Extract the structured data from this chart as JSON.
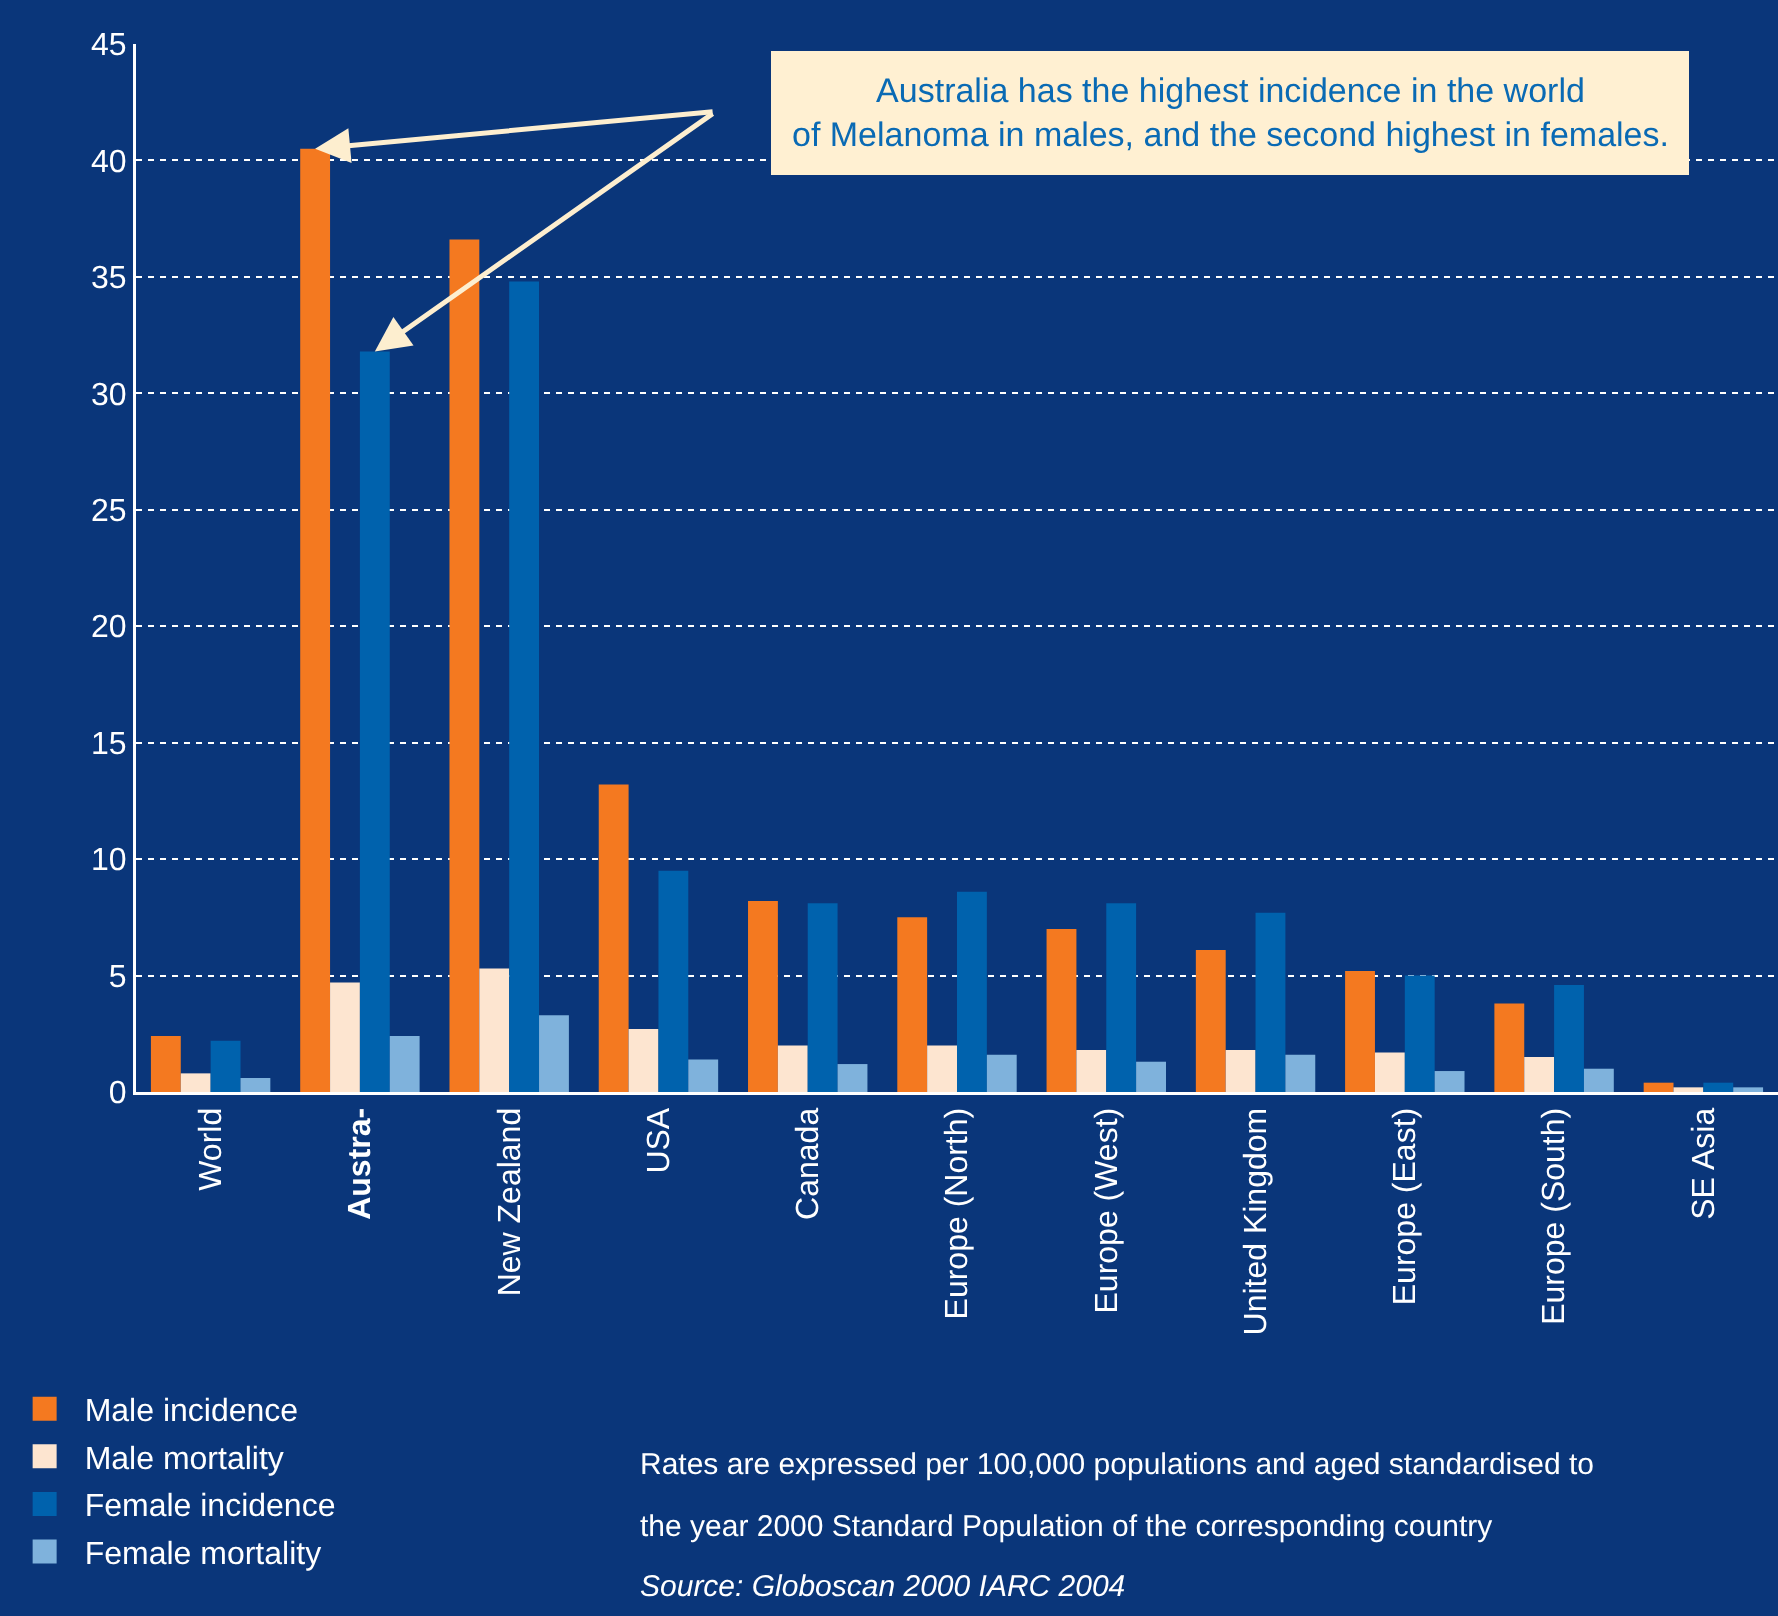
{
  "chart_data": {
    "type": "bar",
    "categories": [
      "World",
      "Austra-",
      "New Zealand",
      "USA",
      "Canada",
      "Europe (North)",
      "Europe (West)",
      "United Kingdom",
      "Europe (East)",
      "Europe (South)",
      "SE Asia"
    ],
    "series": [
      {
        "name": "Male incidence",
        "color": "#f47920",
        "values": [
          2.4,
          40.5,
          36.6,
          13.2,
          8.2,
          7.5,
          7.0,
          6.1,
          5.2,
          3.8,
          0.4
        ]
      },
      {
        "name": "Male mortality",
        "color": "#fde5d0",
        "values": [
          0.8,
          4.7,
          5.3,
          2.7,
          2.0,
          2.0,
          1.8,
          1.8,
          1.7,
          1.5,
          0.2
        ]
      },
      {
        "name": "Female incidence",
        "color": "#0062ad",
        "values": [
          2.2,
          31.8,
          34.8,
          9.5,
          8.1,
          8.6,
          8.1,
          7.7,
          5.0,
          4.6,
          0.4
        ]
      },
      {
        "name": "Female mortality",
        "color": "#7fb2dc",
        "values": [
          0.6,
          2.4,
          3.3,
          1.4,
          1.2,
          1.6,
          1.3,
          1.6,
          0.9,
          1.0,
          0.2
        ]
      }
    ],
    "ylim": [
      0,
      45
    ],
    "yticks": [
      0,
      5,
      10,
      15,
      20,
      25,
      30,
      35,
      40,
      45
    ],
    "grid": "y",
    "legend": "bottom left",
    "annotations": [
      "Australia has the highest incidence in the world of Melanoma in males, and the second highest in females.",
      "Rates are expressed per 100,000 populations and aged standardised to",
      "the year 2000 Standard Population of the corresponding country",
      "Source: Globoscan 2000 IARC 2004"
    ]
  }
}
